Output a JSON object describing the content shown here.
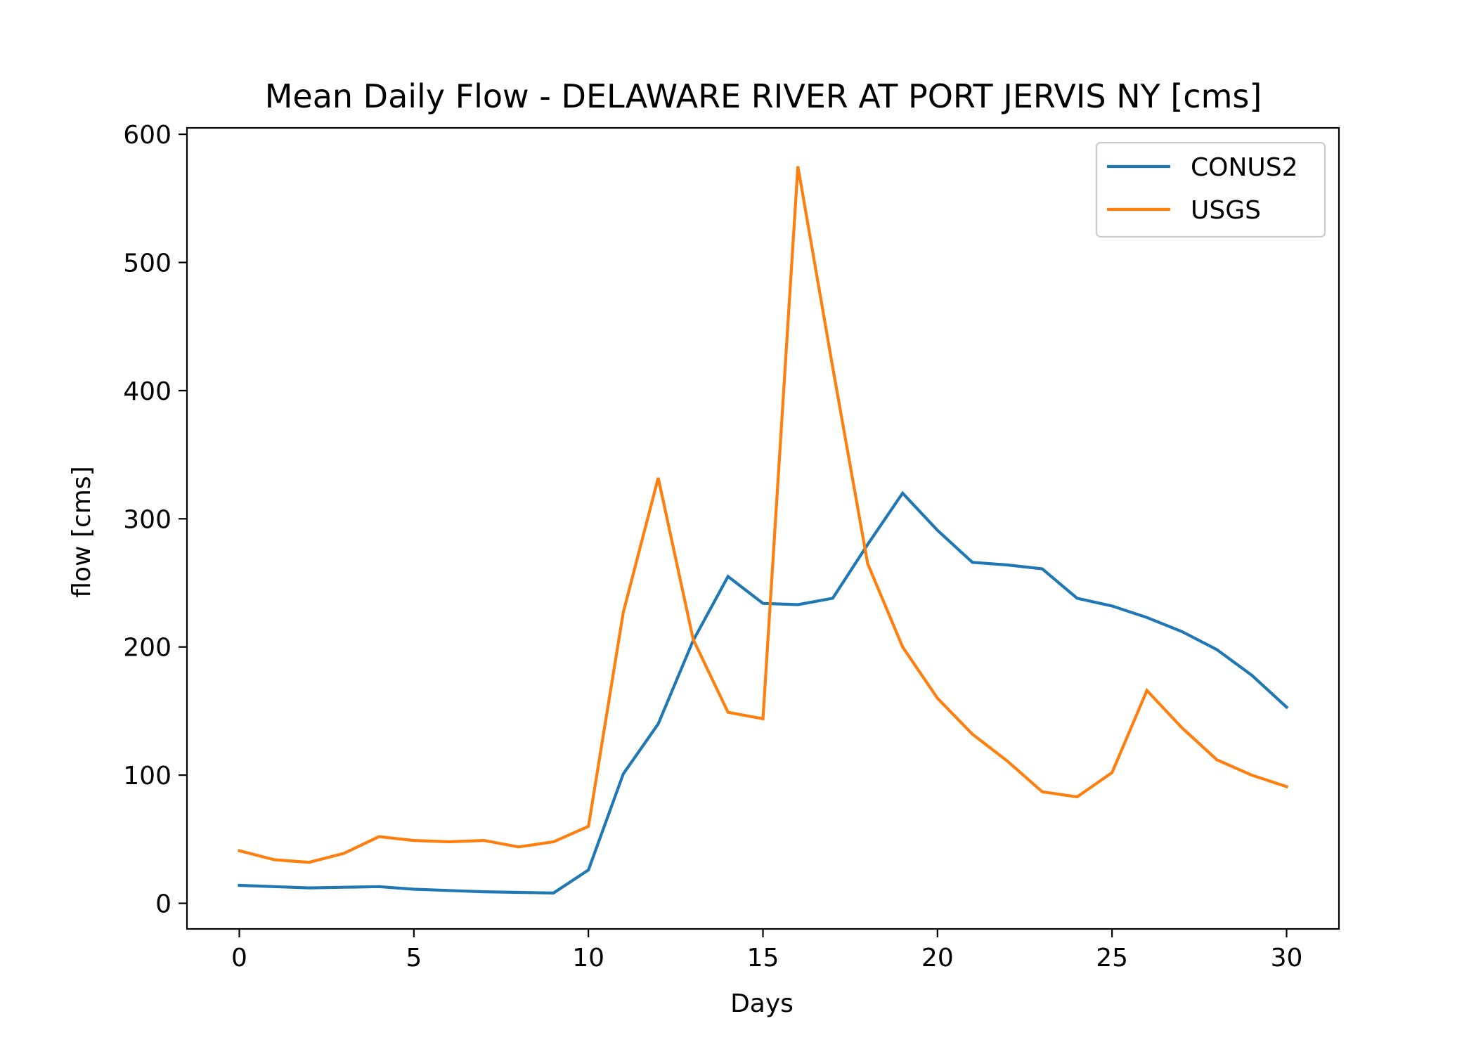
{
  "chart_data": {
    "type": "line",
    "title": "Mean Daily Flow - DELAWARE RIVER AT PORT JERVIS NY [cms]",
    "xlabel": "Days",
    "ylabel": "flow [cms]",
    "xlim": [
      -1.5,
      31.5
    ],
    "ylim": [
      -20,
      605
    ],
    "xticks": [
      0,
      5,
      10,
      15,
      20,
      25,
      30
    ],
    "yticks": [
      0,
      100,
      200,
      300,
      400,
      500,
      600
    ],
    "grid": false,
    "legend_position": "top-right",
    "x": [
      0,
      1,
      2,
      3,
      4,
      5,
      6,
      7,
      8,
      9,
      10,
      11,
      12,
      13,
      14,
      15,
      16,
      17,
      18,
      19,
      20,
      21,
      22,
      23,
      24,
      25,
      26,
      27,
      28,
      29,
      30
    ],
    "series": [
      {
        "name": "CONUS2",
        "color": "#1f77b4",
        "values": [
          14,
          13,
          12,
          12.5,
          13,
          11,
          10,
          9,
          8.5,
          8,
          26,
          101,
          140,
          205,
          255,
          234,
          233,
          238,
          280,
          320,
          291,
          266,
          264,
          261,
          238,
          232,
          223,
          212,
          198,
          178,
          153
        ]
      },
      {
        "name": "USGS",
        "color": "#ff7f0e",
        "values": [
          41,
          34,
          32,
          39,
          52,
          49,
          48,
          49,
          44,
          48,
          60,
          227,
          332,
          206,
          149,
          144,
          575,
          418,
          265,
          200,
          160,
          132,
          111,
          87,
          83,
          102,
          166,
          137,
          112,
          100,
          91
        ]
      }
    ]
  }
}
